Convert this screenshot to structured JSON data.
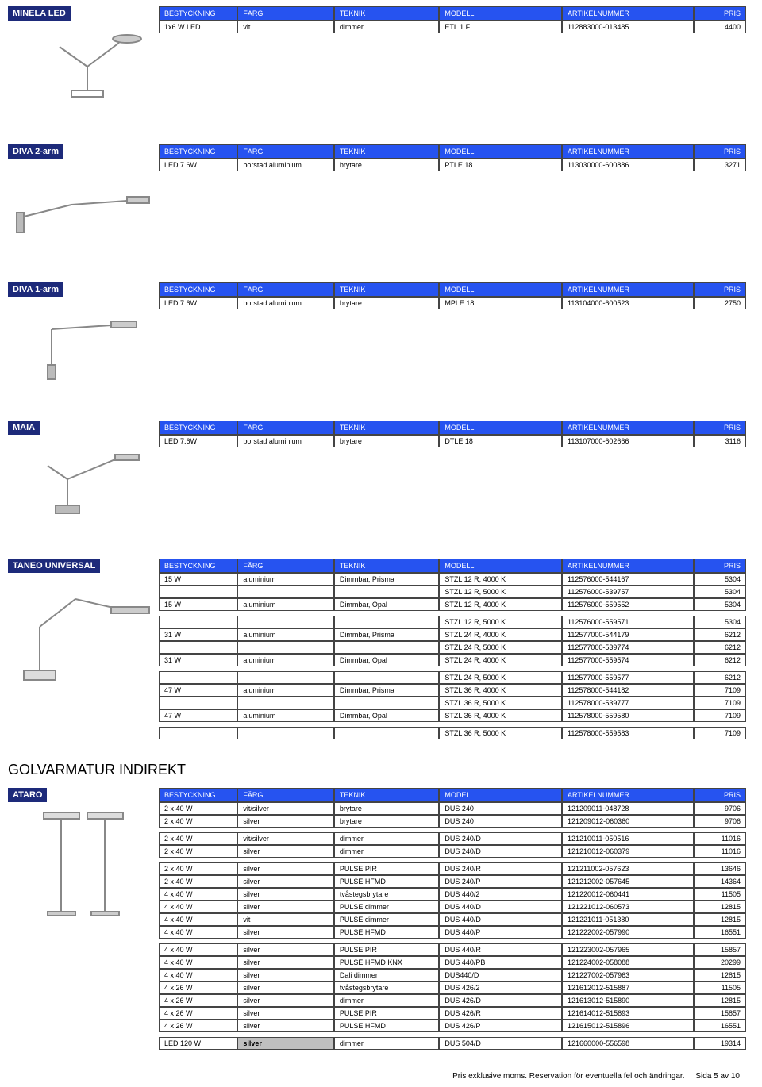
{
  "colors": {
    "label_bg": "#1d2a7a",
    "header_bg": "#2653f0",
    "header_fg": "#ffffff",
    "border": "#444444",
    "text": "#000000",
    "bg": "#ffffff"
  },
  "columns": [
    "BESTYCKNING",
    "FÄRG",
    "TEKNIK",
    "MODELL",
    "ARTIKELNUMMER",
    "PRIS"
  ],
  "sections": [
    {
      "label": "MINELA LED",
      "rows": [
        [
          "1x6 W LED",
          "vit",
          "dimmer",
          "ETL 1 F",
          "112883000-013485",
          "4400"
        ]
      ]
    },
    {
      "label": "DIVA 2-arm",
      "rows": [
        [
          "LED 7.6W",
          "borstad aluminium",
          "brytare",
          "PTLE 18",
          "113030000-600886",
          "3271"
        ]
      ]
    },
    {
      "label": "DIVA 1-arm",
      "rows": [
        [
          "LED 7.6W",
          "borstad aluminium",
          "brytare",
          "MPLE 18",
          "113104000-600523",
          "2750"
        ]
      ]
    },
    {
      "label": "MAIA",
      "rows": [
        [
          "LED 7.6W",
          "borstad aluminium",
          "brytare",
          "DTLE 18",
          "113107000-602666",
          "3116"
        ]
      ]
    },
    {
      "label": "TANEO UNIVERSAL",
      "rowGroups": [
        [
          [
            "15 W",
            "aluminium",
            "Dimmbar, Prisma",
            "STZL 12 R, 4000 K",
            "112576000-544167",
            "5304"
          ],
          [
            "",
            "",
            "",
            "STZL 12 R, 5000 K",
            "112576000-539757",
            "5304"
          ],
          [
            "15 W",
            "aluminium",
            "Dimmbar, Opal",
            "STZL 12 R, 4000 K",
            "112576000-559552",
            "5304"
          ]
        ],
        [
          [
            "",
            "",
            "",
            "STZL 12 R, 5000 K",
            "112576000-559571",
            "5304"
          ],
          [
            "31 W",
            "aluminium",
            "Dimmbar, Prisma",
            "STZL 24 R, 4000 K",
            "112577000-544179",
            "6212"
          ],
          [
            "",
            "",
            "",
            "STZL 24 R, 5000 K",
            "112577000-539774",
            "6212"
          ],
          [
            "31 W",
            "aluminium",
            "Dimmbar, Opal",
            "STZL 24 R, 4000 K",
            "112577000-559574",
            "6212"
          ]
        ],
        [
          [
            "",
            "",
            "",
            "STZL 24 R, 5000 K",
            "112577000-559577",
            "6212"
          ],
          [
            "47 W",
            "aluminium",
            "Dimmbar, Prisma",
            "STZL 36 R, 4000 K",
            "112578000-544182",
            "7109"
          ],
          [
            "",
            "",
            "",
            "STZL 36 R, 5000 K",
            "112578000-539777",
            "7109"
          ],
          [
            "47 W",
            "aluminium",
            "Dimmbar, Opal",
            "STZL 36 R, 4000 K",
            "112578000-559580",
            "7109"
          ]
        ],
        [
          [
            "",
            "",
            "",
            "STZL 36 R, 5000 K",
            "112578000-559583",
            "7109"
          ]
        ]
      ]
    }
  ],
  "heading": "GOLVARMATUR INDIREKT",
  "ataro": {
    "label": "ATARO",
    "rowGroups": [
      [
        [
          "2 x 40 W",
          "vit/silver",
          "brytare",
          "DUS 240",
          "121209011-048728",
          "9706"
        ],
        [
          "2 x 40 W",
          "silver",
          "brytare",
          "DUS 240",
          "121209012-060360",
          "9706"
        ]
      ],
      [
        [
          "2 x 40 W",
          "vit/silver",
          "dimmer",
          "DUS 240/D",
          "121210011-050516",
          "11016"
        ],
        [
          "2 x 40 W",
          "silver",
          "dimmer",
          "DUS 240/D",
          "121210012-060379",
          "11016"
        ]
      ],
      [
        [
          "2 x 40 W",
          "silver",
          "PULSE PIR",
          "DUS 240/R",
          "121211002-057623",
          "13646"
        ],
        [
          "2 x 40 W",
          "silver",
          "PULSE HFMD",
          "DUS 240/P",
          "121212002-057645",
          "14364"
        ],
        [
          "4 x 40 W",
          "silver",
          "tvåstegsbrytare",
          "DUS 440/2",
          "121220012-060441",
          "11505"
        ],
        [
          "4 x 40 W",
          "silver",
          "PULSE dimmer",
          "DUS 440/D",
          "121221012-060573",
          "12815"
        ],
        [
          "4 x 40 W",
          "vit",
          "PULSE dimmer",
          "DUS 440/D",
          "121221011-051380",
          "12815"
        ],
        [
          "4 x 40 W",
          "silver",
          "PULSE HFMD",
          "DUS 440/P",
          "121222002-057990",
          "16551"
        ]
      ],
      [
        [
          "4 x 40 W",
          "silver",
          "PULSE PIR",
          "DUS 440/R",
          "121223002-057965",
          "15857"
        ],
        [
          "4 x 40 W",
          "silver",
          "PULSE HFMD KNX",
          "DUS 440/PB",
          "121224002-058088",
          "20299"
        ],
        [
          "4 x 40 W",
          "silver",
          "Dali dimmer",
          "DUS440/D",
          "121227002-057963",
          "12815"
        ],
        [
          "4 x 26 W",
          "silver",
          "tvåstegsbrytare",
          "DUS 426/2",
          "121612012-515887",
          "11505"
        ],
        [
          "4 x 26 W",
          "silver",
          "dimmer",
          "DUS 426/D",
          "121613012-515890",
          "12815"
        ],
        [
          "4 x 26 W",
          "silver",
          "PULSE PIR",
          "DUS 426/R",
          "121614012-515893",
          "15857"
        ],
        [
          "4 x 26 W",
          "silver",
          "PULSE HFMD",
          "DUS 426/P",
          "121615012-515896",
          "16551"
        ]
      ],
      [
        [
          "LED 120 W",
          "silver",
          "dimmer",
          "DUS 504/D",
          "121660000-556598",
          "19314"
        ]
      ]
    ],
    "silverBgRow": {
      "group": 4,
      "row": 0,
      "col": 1
    }
  },
  "footer": {
    "text": "Pris exklusive moms. Reservation för eventuella fel och ändringar.",
    "page": "Sida 5 av 10"
  }
}
